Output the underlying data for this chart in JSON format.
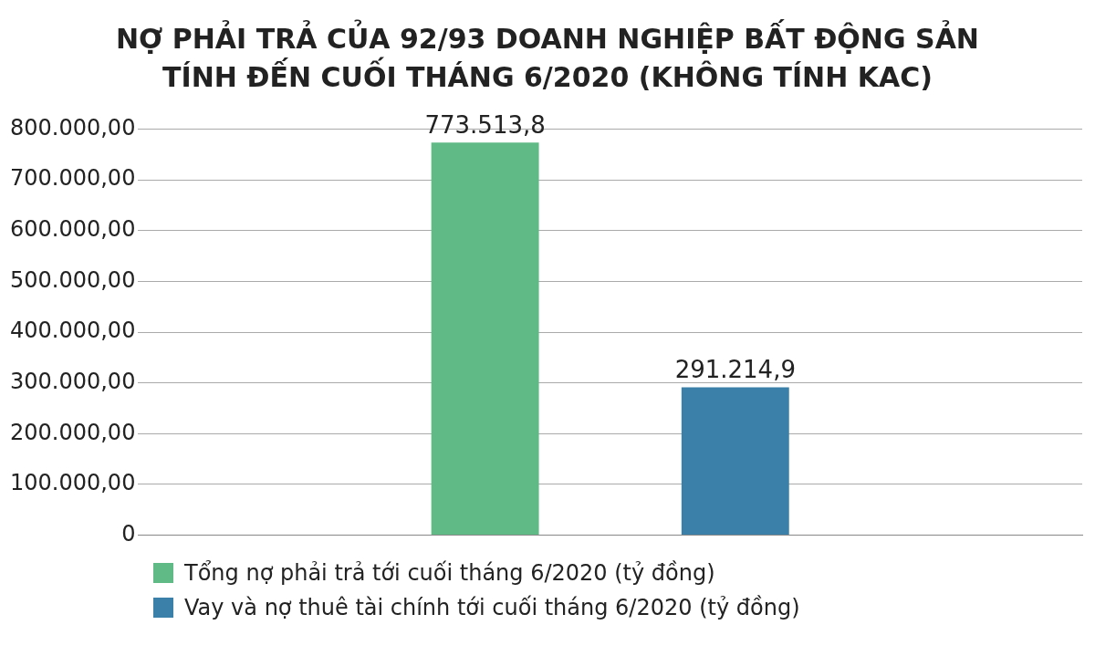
{
  "chart_data": {
    "type": "bar",
    "title": "NỢ PHẢI TRẢ CỦA 92/93 DOANH NGHIỆP BẤT ĐỘNG SẢN TÍNH ĐẾN CUỐI THÁNG 6/2020 (KHÔNG TÍNH KAC)",
    "categories": [
      null
    ],
    "series": [
      {
        "name": "Tổng nợ phải trả tới cuối tháng 6/2020 (tỷ đồng)",
        "color": "#5fba86",
        "values": [
          773513.8
        ],
        "value_labels": [
          "773.513,8"
        ]
      },
      {
        "name": "Vay và nợ thuê tài chính tới cuối tháng 6/2020 (tỷ đồng)",
        "color": "#3a80a8",
        "values": [
          291214.9
        ],
        "value_labels": [
          "291.214,9"
        ]
      }
    ],
    "ylim": [
      0,
      800000
    ],
    "yticks": [
      0,
      {
        "value": 100000,
        "label": "100.000,00"
      },
      {
        "value": 200000,
        "label": "200.000,00"
      },
      {
        "value": 300000,
        "label": "300.000,00"
      },
      {
        "value": 400000,
        "label": "400.000,00"
      },
      {
        "value": 500000,
        "label": "500.000,00"
      },
      {
        "value": 600000,
        "label": "600.000,00"
      },
      {
        "value": 700000,
        "label": "700.000,00"
      },
      {
        "value": 800000,
        "label": "800.000,00"
      }
    ],
    "grid": "y",
    "legend": "bottom"
  }
}
